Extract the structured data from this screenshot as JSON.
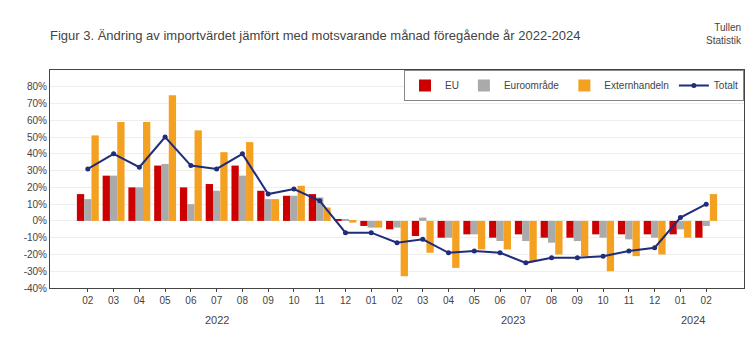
{
  "chart_data": {
    "type": "bar",
    "title": "Figur 3. Ändring av importvärdet jämfört med motsvarande månad föregående år 2022-2024",
    "categories": [
      "02",
      "03",
      "04",
      "05",
      "06",
      "07",
      "08",
      "09",
      "10",
      "11",
      "12",
      "01",
      "02",
      "03",
      "04",
      "05",
      "06",
      "07",
      "08",
      "09",
      "10",
      "11",
      "12",
      "01",
      "02"
    ],
    "series": [
      {
        "name": "EU",
        "type": "bar",
        "color": "#cc0000",
        "values": [
          16,
          27,
          20,
          33,
          20,
          22,
          33,
          18,
          15,
          16,
          1,
          -3,
          -5,
          -9,
          -10,
          -8,
          -10,
          -8,
          -10,
          -10,
          -8,
          -8,
          -8,
          -8,
          -10
        ]
      },
      {
        "name": "Euroområde",
        "type": "bar",
        "color": "#aaaaaa",
        "values": [
          13,
          27,
          20,
          34,
          10,
          18,
          27,
          13,
          15,
          14,
          1,
          -4,
          -4,
          2,
          -10,
          -8,
          -12,
          -12,
          -13,
          -12,
          -10,
          -11,
          -10,
          -5,
          -3
        ]
      },
      {
        "name": "Externhandeln",
        "type": "bar",
        "color": "#f4a020",
        "values": [
          51,
          59,
          59,
          75,
          54,
          41,
          47,
          13,
          21,
          8,
          -1,
          -4,
          -33,
          -19,
          -28,
          -17,
          -17,
          -24,
          -20,
          -21,
          -30,
          -21,
          -20,
          -10,
          16
        ]
      },
      {
        "name": "Totalt",
        "type": "line",
        "color": "#1f2d7a",
        "marker": "circle",
        "values": [
          31,
          40,
          32,
          50,
          33,
          31,
          40,
          16,
          19,
          12,
          -7,
          -7,
          -13,
          -11,
          -19,
          -18,
          -19,
          -25,
          -22,
          -22,
          -21,
          -18,
          -16,
          2,
          10
        ]
      }
    ],
    "annotations": [
      {
        "text": "2022",
        "x": 5.0
      },
      {
        "text": "2023",
        "x": 16.5
      },
      {
        "text": "2024",
        "x": 23.5
      },
      {
        "text": "Tullen\nStatistik"
      }
    ],
    "ylim": [
      -40,
      90
    ],
    "yticks": [
      {
        "value": -40,
        "label": "-40%"
      },
      {
        "value": -30,
        "label": "-30%"
      },
      {
        "value": -20,
        "label": "-20%"
      },
      {
        "value": -10,
        "label": "-10%"
      },
      {
        "value": 0,
        "label": "0%"
      },
      {
        "value": 10,
        "label": "10%"
      },
      {
        "value": 20,
        "label": "20%"
      },
      {
        "value": 30,
        "label": "30%"
      },
      {
        "value": 40,
        "label": "40%"
      },
      {
        "value": 50,
        "label": "50%"
      },
      {
        "value": 60,
        "label": "60%"
      },
      {
        "value": 70,
        "label": "70%"
      },
      {
        "value": 80,
        "label": "80%"
      }
    ],
    "grid": true,
    "legend": "upper right"
  }
}
